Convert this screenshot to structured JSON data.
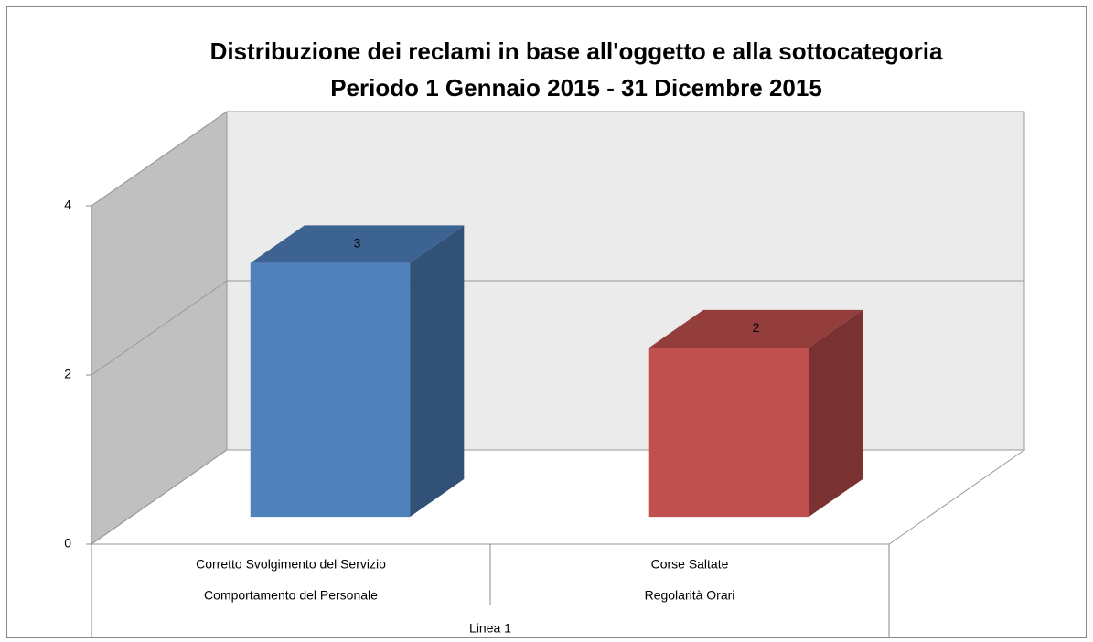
{
  "chart_data": {
    "type": "bar3d",
    "title": "Distribuzione dei reclami in base all'oggetto e alla sottocategoria",
    "subtitle": "Periodo 1 Gennaio 2015 - 31 Dicembre 2015",
    "categories": [
      "Corretto Svolgimento del Servizio",
      "Corse Saltate"
    ],
    "category_groups": [
      "Comportamento del Personale",
      "Regolarità Orari"
    ],
    "top_group": "Linea 1",
    "values": [
      3,
      2
    ],
    "colors": [
      "#4f81bd",
      "#c0504d"
    ],
    "ylim": [
      0,
      4
    ],
    "yticks": [
      0,
      2,
      4
    ],
    "grid": true
  }
}
